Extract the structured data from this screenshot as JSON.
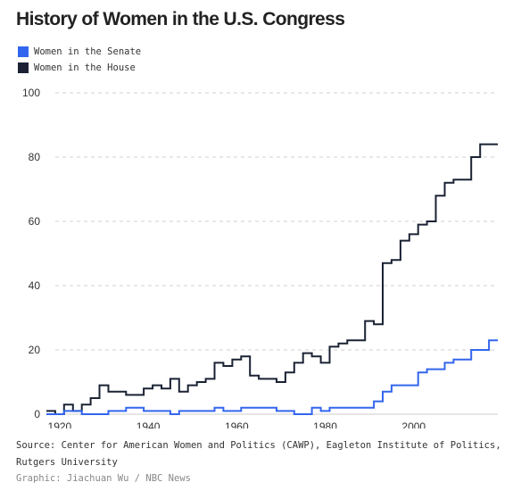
{
  "title": "History of Women in the U.S. Congress",
  "legend": [
    {
      "label": "Women in the Senate",
      "color": "#3366ee"
    },
    {
      "label": "Women in the House",
      "color": "#1a2233"
    }
  ],
  "source": "Source: Center for American Women and Politics (CAWP), Eagleton Institute of Politics, Rutgers University",
  "credit": "Graphic: Jiachuan Wu / NBC News",
  "chart_data": {
    "type": "line",
    "step": true,
    "title": "History of Women in the U.S. Congress",
    "xlabel": "",
    "ylabel": "",
    "xlim": [
      1917,
      2019
    ],
    "ylim": [
      0,
      100
    ],
    "x_ticks": [
      1920,
      1940,
      1960,
      1980,
      2000
    ],
    "y_ticks": [
      0,
      20,
      40,
      60,
      80,
      100
    ],
    "grid": "horizontal dashed",
    "legend_position": "top-left",
    "series": [
      {
        "name": "Women in the House",
        "color": "#1a2233",
        "x": [
          1917,
          1919,
          1921,
          1923,
          1925,
          1927,
          1929,
          1931,
          1933,
          1935,
          1937,
          1939,
          1941,
          1943,
          1945,
          1947,
          1949,
          1951,
          1953,
          1955,
          1957,
          1959,
          1961,
          1963,
          1965,
          1967,
          1969,
          1971,
          1973,
          1975,
          1977,
          1979,
          1981,
          1983,
          1985,
          1987,
          1989,
          1991,
          1993,
          1995,
          1997,
          1999,
          2001,
          2003,
          2005,
          2007,
          2009,
          2011,
          2013,
          2015,
          2017,
          2019
        ],
        "values": [
          1,
          0,
          3,
          1,
          3,
          5,
          9,
          7,
          7,
          6,
          6,
          8,
          9,
          8,
          11,
          7,
          9,
          10,
          11,
          16,
          15,
          17,
          18,
          12,
          11,
          11,
          10,
          13,
          16,
          19,
          18,
          16,
          21,
          22,
          23,
          23,
          29,
          28,
          47,
          48,
          54,
          56,
          59,
          60,
          68,
          72,
          73,
          73,
          80,
          84,
          84,
          84
        ]
      },
      {
        "name": "Women in the Senate",
        "color": "#3366ee",
        "x": [
          1917,
          1919,
          1921,
          1923,
          1925,
          1927,
          1929,
          1931,
          1933,
          1935,
          1937,
          1939,
          1941,
          1943,
          1945,
          1947,
          1949,
          1951,
          1953,
          1955,
          1957,
          1959,
          1961,
          1963,
          1965,
          1967,
          1969,
          1971,
          1973,
          1975,
          1977,
          1979,
          1981,
          1983,
          1985,
          1987,
          1989,
          1991,
          1993,
          1995,
          1997,
          1999,
          2001,
          2003,
          2005,
          2007,
          2009,
          2011,
          2013,
          2015,
          2017,
          2019
        ],
        "values": [
          0,
          0,
          1,
          1,
          0,
          0,
          0,
          1,
          1,
          2,
          2,
          1,
          1,
          1,
          0,
          1,
          1,
          1,
          1,
          2,
          1,
          1,
          2,
          2,
          2,
          2,
          1,
          1,
          0,
          0,
          2,
          1,
          2,
          2,
          2,
          2,
          2,
          4,
          7,
          9,
          9,
          9,
          13,
          14,
          14,
          16,
          17,
          17,
          20,
          20,
          23,
          23
        ]
      }
    ]
  }
}
